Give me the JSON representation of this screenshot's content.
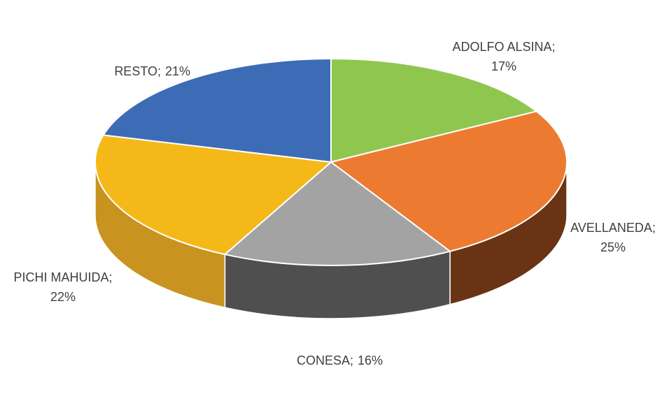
{
  "chart_data": {
    "type": "pie3d",
    "categories": [
      "ADOLFO ALSINA;",
      "AVELLANEDA;",
      "CONESA;",
      "PICHI MAHUIDA;",
      "RESTO;"
    ],
    "values": [
      17,
      25,
      16,
      22,
      21
    ],
    "value_labels": [
      "17%",
      "25%",
      "16%",
      "22%",
      "21%"
    ],
    "colors": [
      "#8fc74e",
      "#ec7b31",
      "#a3a3a3",
      "#f4b919",
      "#3d6cb6"
    ],
    "side_colors": [
      "#5e8a2c",
      "#6a3414",
      "#4f4f4f",
      "#c99320",
      "#264a82"
    ]
  }
}
